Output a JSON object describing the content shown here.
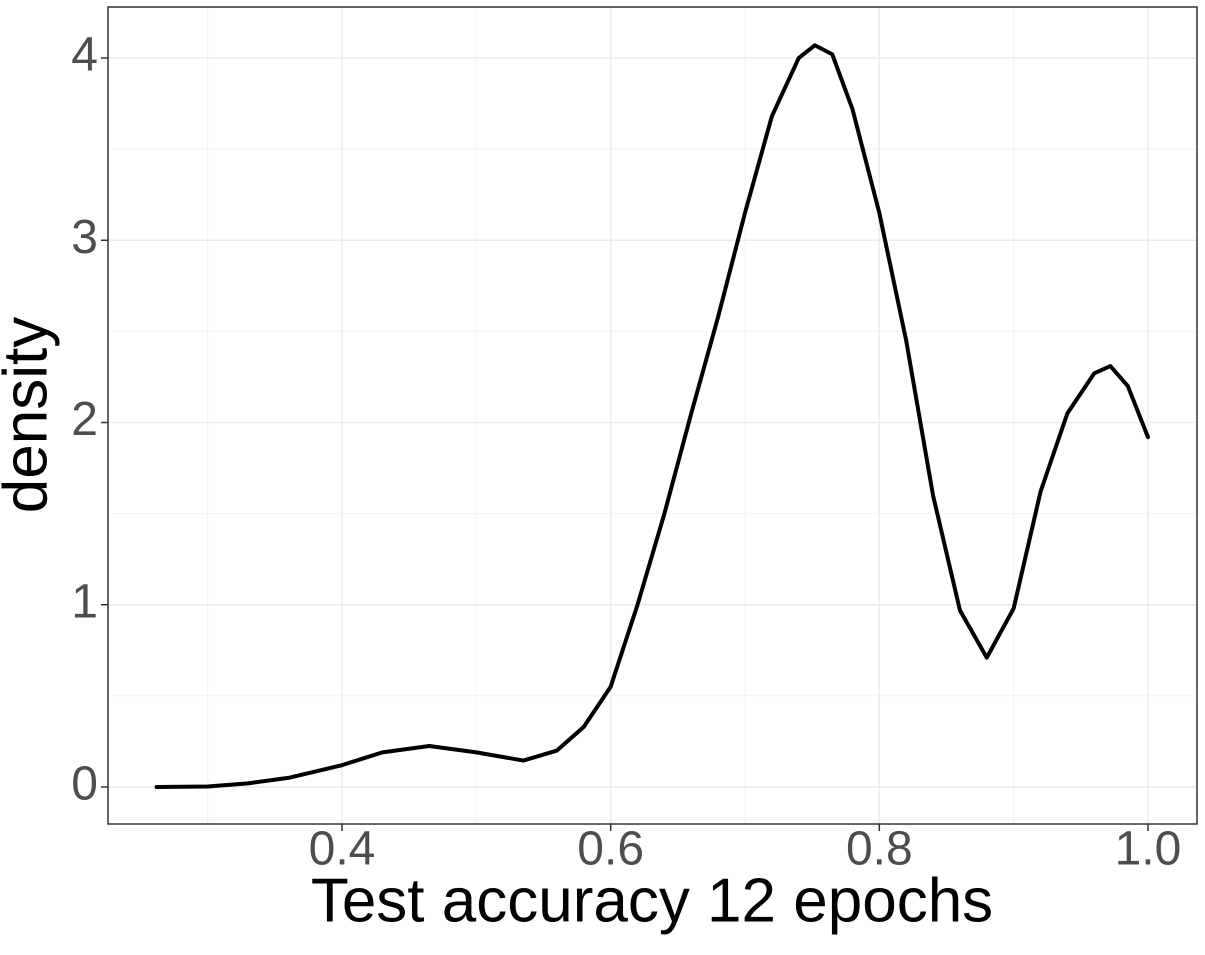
{
  "chart_data": {
    "type": "line",
    "x_label": "Test accuracy 12 epochs",
    "y_label": "density",
    "x": [
      0.262,
      0.3,
      0.33,
      0.36,
      0.4,
      0.43,
      0.465,
      0.5,
      0.535,
      0.56,
      0.58,
      0.6,
      0.62,
      0.64,
      0.66,
      0.68,
      0.7,
      0.72,
      0.74,
      0.752,
      0.765,
      0.78,
      0.8,
      0.82,
      0.84,
      0.86,
      0.88,
      0.9,
      0.92,
      0.94,
      0.96,
      0.972,
      0.985,
      1.0
    ],
    "y": [
      0,
      0.003,
      0.02,
      0.05,
      0.12,
      0.19,
      0.225,
      0.19,
      0.145,
      0.2,
      0.33,
      0.55,
      1.0,
      1.5,
      2.05,
      2.58,
      3.15,
      3.68,
      4.0,
      4.07,
      4.02,
      3.72,
      3.15,
      2.45,
      1.6,
      0.97,
      0.71,
      0.98,
      1.62,
      2.05,
      2.27,
      2.31,
      2.2,
      1.92
    ],
    "color": "#000000",
    "xlim": [
      0.2258,
      1.0365
    ],
    "xticks": [
      0.4,
      0.6,
      0.8,
      {
        "value": 1.0,
        "label": "1.0"
      }
    ],
    "ylim": [
      -0.203,
      4.28
    ],
    "yticks": [
      0,
      1,
      2,
      3,
      4
    ],
    "grid": true,
    "minor_grid": true
  }
}
